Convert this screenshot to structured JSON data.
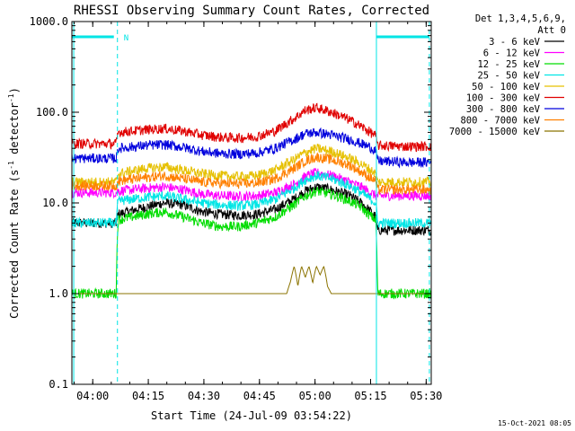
{
  "chart_data": {
    "type": "line",
    "title": "RHESSI Observing Summary Count Rates, Corrected",
    "xlabel": "Start Time (24-Jul-09 03:54:22)",
    "ylabel": "Corrected Count Rate (s",
    "ylabel_sup": "-1",
    "ylabel_mid": " detector",
    "ylabel_sup2": "-1",
    "ylabel_end": ")",
    "yscale": "log",
    "ylim": [
      0.1,
      1000
    ],
    "xlim_minutes": [
      0,
      97
    ],
    "x_ticks": [
      {
        "label": "04:00",
        "minute": 5.63
      },
      {
        "label": "04:15",
        "minute": 20.63
      },
      {
        "label": "04:30",
        "minute": 35.63
      },
      {
        "label": "04:45",
        "minute": 50.63
      },
      {
        "label": "05:00",
        "minute": 65.63
      },
      {
        "label": "05:15",
        "minute": 80.63
      },
      {
        "label": "05:30",
        "minute": 95.63
      }
    ],
    "y_ticks": [
      {
        "label": "0.1",
        "value": 0.1
      },
      {
        "label": "1.0",
        "value": 1
      },
      {
        "label": "10.0",
        "value": 10
      },
      {
        "label": "100.0",
        "value": 100
      },
      {
        "label": "1000.0",
        "value": 1000
      }
    ],
    "legend_header": [
      "Det 1,3,4,5,6,9,",
      "Att 0"
    ],
    "legend_position": "right",
    "series": [
      {
        "name": "3 - 6 keV",
        "color": "#000000",
        "x": [
          0,
          12,
          12.5,
          20,
          25,
          30,
          35,
          40,
          45,
          50,
          55,
          60,
          63,
          66,
          70,
          75,
          78,
          80,
          82,
          82.5,
          90,
          97
        ],
        "y": [
          6,
          6,
          7.5,
          9,
          10,
          9.5,
          8,
          7.5,
          7.3,
          7.5,
          8.5,
          11,
          13.5,
          15,
          14,
          12,
          10,
          8.5,
          7,
          5,
          5,
          5
        ]
      },
      {
        "name": "6 - 12 keV",
        "color": "#ff00ff",
        "x": [
          0,
          12,
          12.5,
          20,
          25,
          30,
          35,
          40,
          45,
          50,
          55,
          60,
          63,
          66,
          70,
          75,
          78,
          80,
          82,
          82.5,
          90,
          97
        ],
        "y": [
          13,
          13,
          13.5,
          14.5,
          15,
          14,
          12.5,
          12,
          11.8,
          12,
          13,
          16,
          19.5,
          21.5,
          20,
          17,
          15,
          13.5,
          12,
          12,
          12,
          12
        ]
      },
      {
        "name": "12 - 25 keV",
        "color": "#00dd00",
        "x": [
          0,
          12,
          12.5,
          20,
          25,
          30,
          35,
          40,
          45,
          50,
          55,
          60,
          63,
          66,
          70,
          75,
          78,
          80,
          82,
          82.5,
          90,
          97
        ],
        "y": [
          1,
          1,
          6.5,
          7.5,
          8,
          7,
          6,
          5.5,
          5.5,
          6,
          7,
          9.5,
          12,
          13.5,
          12.5,
          10.5,
          9,
          7.5,
          6.5,
          1,
          1,
          1
        ]
      },
      {
        "name": "25 - 50 keV",
        "color": "#00e5e5",
        "x": [
          0,
          12,
          12.5,
          20,
          25,
          30,
          35,
          40,
          45,
          50,
          55,
          60,
          63,
          66,
          70,
          75,
          78,
          80,
          82,
          82.5,
          90,
          97
        ],
        "y": [
          6,
          6,
          10.5,
          11.5,
          12,
          11,
          10,
          9.5,
          9.3,
          9.6,
          11,
          14.5,
          18,
          20,
          18.5,
          15.5,
          13,
          11.5,
          10,
          6,
          6,
          6
        ]
      },
      {
        "name": "50 - 100 keV",
        "color": "#e6c000",
        "x": [
          0,
          12,
          12.5,
          20,
          25,
          30,
          35,
          40,
          45,
          50,
          55,
          60,
          63,
          66,
          70,
          75,
          78,
          80,
          82,
          82.5,
          90,
          97
        ],
        "y": [
          17,
          17,
          21,
          24,
          25,
          23,
          21,
          20,
          19.5,
          20,
          23,
          30,
          36,
          40,
          37,
          31,
          27,
          24,
          21,
          17,
          17,
          17
        ]
      },
      {
        "name": "100 - 300 keV",
        "color": "#e00000",
        "x": [
          0,
          12,
          12.5,
          20,
          25,
          30,
          35,
          40,
          45,
          50,
          55,
          60,
          63,
          66,
          70,
          75,
          78,
          80,
          82,
          82.5,
          90,
          97
        ],
        "y": [
          45,
          45,
          60,
          64,
          66,
          62,
          56,
          53,
          52,
          54,
          62,
          85,
          105,
          112,
          100,
          82,
          70,
          62,
          55,
          43,
          42,
          42
        ]
      },
      {
        "name": "300 - 800 keV",
        "color": "#0000dd",
        "x": [
          0,
          12,
          12.5,
          20,
          25,
          30,
          35,
          40,
          45,
          50,
          55,
          60,
          63,
          66,
          70,
          75,
          78,
          80,
          82,
          82.5,
          90,
          97
        ],
        "y": [
          31,
          31,
          40,
          43,
          44,
          41,
          37,
          35,
          34.5,
          35.5,
          40,
          50,
          58,
          60,
          56,
          50,
          45,
          42,
          38,
          29,
          28,
          28
        ]
      },
      {
        "name": "800 - 7000 keV",
        "color": "#ff8000",
        "x": [
          0,
          12,
          12.5,
          20,
          25,
          30,
          35,
          40,
          45,
          50,
          55,
          60,
          63,
          66,
          70,
          75,
          78,
          80,
          82,
          82.5,
          90,
          97
        ],
        "y": [
          15.5,
          15.5,
          17.5,
          19,
          20,
          18.5,
          17,
          16.5,
          16.2,
          16.6,
          18.5,
          24,
          29,
          32,
          30,
          26,
          22,
          19.5,
          17.5,
          14,
          14,
          14
        ]
      },
      {
        "name": "7000 - 15000 keV",
        "color": "#8b7300",
        "x": [
          0,
          12,
          20,
          30,
          40,
          50,
          58,
          59,
          60,
          61,
          62,
          63,
          64,
          65,
          66,
          67,
          68,
          69,
          70,
          75,
          82,
          97
        ],
        "y": [
          1,
          1,
          1,
          1,
          1,
          1,
          1,
          1.35,
          2,
          1.2,
          2,
          1.5,
          2,
          1.3,
          2,
          1.6,
          2,
          1.2,
          1,
          1,
          1,
          1
        ]
      }
    ],
    "annotations": [
      {
        "text": "N",
        "color": "#00e5e5"
      }
    ]
  },
  "timestamp": "15-Oct-2021 08:05",
  "colors": {
    "axis": "#000000",
    "flag": "#00e5e5",
    "background": "#ffffff"
  }
}
